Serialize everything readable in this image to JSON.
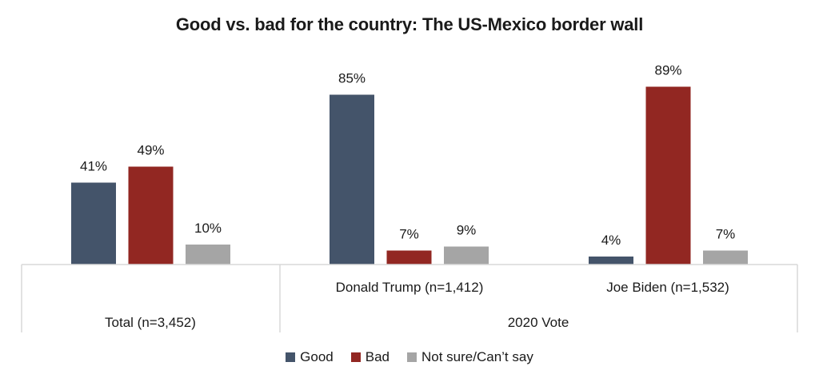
{
  "chart_data": {
    "type": "bar",
    "title": "Good vs. bad for the country: The US-Mexico border wall",
    "xlabel": "",
    "ylabel": "",
    "ylim": [
      0,
      100
    ],
    "grid": false,
    "legend_position": "bottom",
    "categories": [
      "Total (n=3,452)",
      "Donald Trump (n=1,412)",
      "Joe Biden (n=1,532)"
    ],
    "category_groups": [
      {
        "label": "",
        "categories": [
          "Total (n=3,452)"
        ]
      },
      {
        "label": "2020 Vote",
        "categories": [
          "Donald Trump (n=1,412)",
          "Joe Biden (n=1,532)"
        ]
      }
    ],
    "series": [
      {
        "name": "Good",
        "color": "#44546a",
        "values": [
          41,
          85,
          4
        ],
        "labels": [
          "41%",
          "85%",
          "4%"
        ]
      },
      {
        "name": "Bad",
        "color": "#922722",
        "values": [
          49,
          7,
          89
        ],
        "labels": [
          "49%",
          "7%",
          "89%"
        ]
      },
      {
        "name": "Not sure/Can’t say",
        "color": "#a5a5a5",
        "values": [
          10,
          9,
          7
        ],
        "labels": [
          "10%",
          "9%",
          "7%"
        ]
      }
    ],
    "total_label": "Total (n=3,452)",
    "group_label": "2020 Vote"
  }
}
